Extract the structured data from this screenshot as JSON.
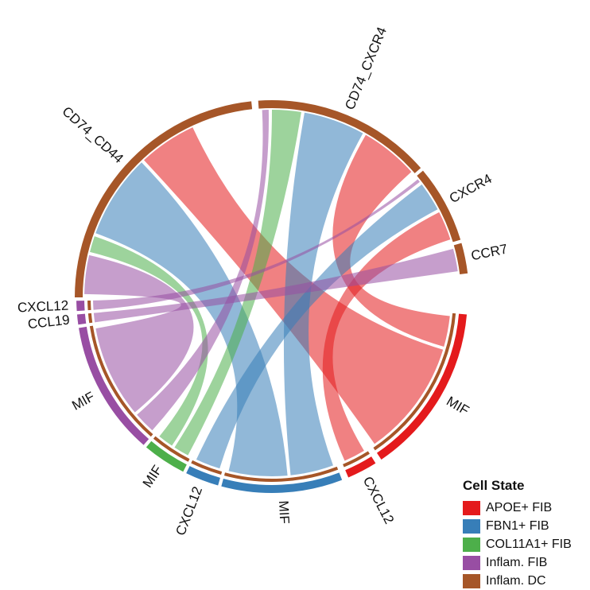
{
  "chart_data": {
    "type": "chord",
    "title": "",
    "legend": {
      "title": "Cell State",
      "placement": "bottom-right",
      "items": [
        {
          "label": "APOE+ FIB",
          "color": "#E41A1C"
        },
        {
          "label": "FBN1+ FIB",
          "color": "#377EB8"
        },
        {
          "label": "COL11A1+ FIB",
          "color": "#4DAF4A"
        },
        {
          "label": "Inflam. FIB",
          "color": "#984EA3"
        },
        {
          "label": "Inflam. DC",
          "color": "#A65628"
        }
      ]
    },
    "groups": [
      {
        "label": "CD74_CD44",
        "cell": "Inflam. DC",
        "start": -90,
        "end": -6
      },
      {
        "label": "CD74_CXCR4",
        "cell": "Inflam. DC",
        "start": -4,
        "end": 49
      },
      {
        "label": "CXCR4",
        "cell": "Inflam. DC",
        "start": 50,
        "end": 73
      },
      {
        "label": "CCR7",
        "cell": "Inflam. DC",
        "start": 74,
        "end": 83
      },
      {
        "label": "MIF",
        "cell": "APOE+ FIB",
        "start": 95,
        "end": 146
      },
      {
        "label": "CXCL12",
        "cell": "APOE+ FIB",
        "start": 148,
        "end": 157
      },
      {
        "label": "MIF",
        "cell": "FBN1+ FIB",
        "start": 159,
        "end": 195
      },
      {
        "label": "CXCL12",
        "cell": "FBN1+ FIB",
        "start": 196,
        "end": 206
      },
      {
        "label": "MIF",
        "cell": "COL11A1+ FIB",
        "start": 207,
        "end": 220
      },
      {
        "label": "MIF",
        "cell": "Inflam. FIB",
        "start": 221,
        "end": 261
      },
      {
        "label": "CCL19",
        "cell": "Inflam. FIB",
        "start": 262,
        "end": 265
      },
      {
        "label": "CXCL12",
        "cell": "Inflam. FIB",
        "start": 266,
        "end": 269
      }
    ],
    "links": [
      {
        "from": "MIF",
        "from_cell": "APOE+ FIB",
        "to": "CD74_CD44",
        "s": [
          107,
          145
        ],
        "t": [
          -43,
          -25
        ]
      },
      {
        "from": "MIF",
        "from_cell": "APOE+ FIB",
        "to": "CD74_CXCR4",
        "s": [
          96,
          106
        ],
        "t": [
          30,
          48
        ]
      },
      {
        "from": "CXCL12",
        "from_cell": "APOE+ FIB",
        "to": "CXCR4",
        "s": [
          149,
          156
        ],
        "t": [
          63,
          72
        ]
      },
      {
        "from": "MIF",
        "from_cell": "FBN1+ FIB",
        "to": "CD74_CD44",
        "s": [
          175,
          194
        ],
        "t": [
          -70,
          -44
        ]
      },
      {
        "from": "MIF",
        "from_cell": "FBN1+ FIB",
        "to": "CD74_CXCR4",
        "s": [
          160,
          174
        ],
        "t": [
          10,
          29
        ]
      },
      {
        "from": "CXCL12",
        "from_cell": "FBN1+ FIB",
        "to": "CXCR4",
        "s": [
          197,
          205
        ],
        "t": [
          53,
          62
        ]
      },
      {
        "from": "MIF",
        "from_cell": "COL11A1+ FIB",
        "to": "CD74_CD44",
        "s": [
          214,
          219
        ],
        "t": [
          -76,
          -71
        ]
      },
      {
        "from": "MIF",
        "from_cell": "COL11A1+ FIB",
        "to": "CD74_CXCR4",
        "s": [
          208,
          213
        ],
        "t": [
          0,
          9
        ]
      },
      {
        "from": "MIF",
        "from_cell": "Inflam. FIB",
        "to": "CD74_CD44",
        "s": [
          230,
          260
        ],
        "t": [
          -89,
          -77
        ]
      },
      {
        "from": "MIF",
        "from_cell": "Inflam. FIB",
        "to": "CD74_CXCR4",
        "s": [
          222,
          229
        ],
        "t": [
          -3,
          -1
        ]
      },
      {
        "from": "CCL19",
        "from_cell": "Inflam. FIB",
        "to": "CCR7",
        "s": [
          262,
          265
        ],
        "t": [
          75,
          82
        ]
      },
      {
        "from": "CXCL12",
        "from_cell": "Inflam. FIB",
        "to": "CXCR4",
        "s": [
          266,
          269
        ],
        "t": [
          51,
          52
        ]
      }
    ]
  }
}
